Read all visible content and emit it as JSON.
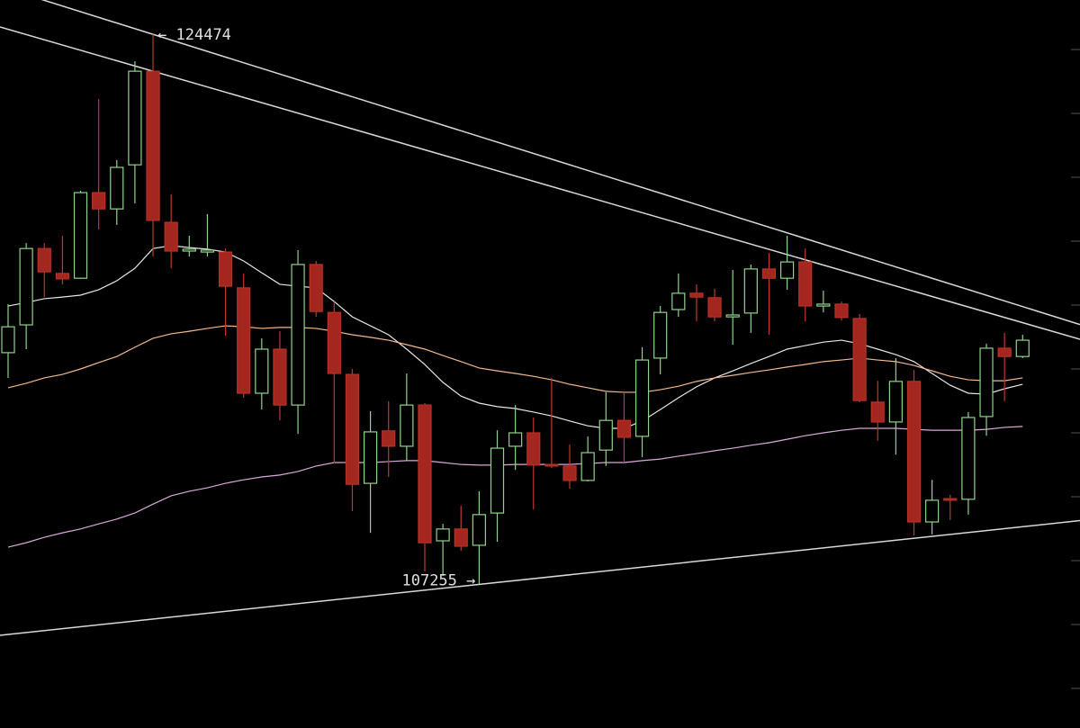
{
  "chart_data": {
    "type": "candlestick",
    "ylim": [
      102760,
      125550
    ],
    "yticks": [
      104000,
      106000,
      108000,
      110000,
      112000,
      114000,
      116000,
      118000,
      120000,
      122000,
      124000
    ],
    "up_color": "#8fd48a",
    "down_color": "#a3261f",
    "candles": {
      "open": [
        114510,
        115380,
        117770,
        116990,
        116840,
        119520,
        119010,
        120390,
        123320,
        118590,
        117690,
        117660,
        117660,
        116540,
        113240,
        114620,
        112870,
        117270,
        115770,
        113830,
        110420,
        112060,
        111580,
        112870,
        108620,
        108990,
        108480,
        109490,
        111580,
        112000,
        111010,
        110960,
        110510,
        111460,
        112390,
        111890,
        114340,
        115860,
        116370,
        116230,
        115630,
        115750,
        117130,
        116840,
        117350,
        115970,
        116030,
        115580,
        112960,
        112340,
        113610,
        109210,
        109940,
        109920,
        112510,
        114650,
        114390
      ],
      "high": [
        116030,
        117940,
        117940,
        118170,
        119580,
        122450,
        120540,
        123630,
        124474,
        119460,
        118170,
        118850,
        117770,
        116990,
        114960,
        115180,
        117720,
        117380,
        116110,
        114000,
        112680,
        112990,
        113860,
        112930,
        109150,
        109720,
        110170,
        112080,
        112870,
        112480,
        113720,
        111630,
        111890,
        113270,
        113240,
        114680,
        115970,
        116990,
        116650,
        116510,
        117100,
        117270,
        117630,
        118170,
        117770,
        116450,
        116110,
        115720,
        113630,
        114340,
        113970,
        110530,
        110060,
        112650,
        114790,
        115130,
        115070
      ],
      "low": [
        113720,
        114620,
        116250,
        116650,
        116820,
        118370,
        118510,
        119180,
        117520,
        117150,
        117520,
        117520,
        115040,
        113100,
        112730,
        112390,
        111970,
        115630,
        111040,
        109550,
        108870,
        110620,
        111130,
        107660,
        107520,
        108310,
        107255,
        108590,
        110840,
        109600,
        110900,
        110250,
        110480,
        110960,
        111100,
        111240,
        113830,
        115630,
        115490,
        115490,
        114760,
        115130,
        115070,
        116480,
        115490,
        115770,
        115520,
        112960,
        111750,
        111320,
        108790,
        108820,
        109270,
        109440,
        111910,
        112990,
        114340
      ],
      "close": [
        115320,
        117770,
        117040,
        116820,
        119520,
        119010,
        120310,
        123320,
        118650,
        117690,
        117750,
        117720,
        116590,
        113240,
        114620,
        112870,
        117270,
        115800,
        113860,
        110390,
        112030,
        111580,
        112870,
        108560,
        108990,
        108450,
        109440,
        111520,
        112000,
        110990,
        110960,
        110510,
        111380,
        112390,
        111860,
        114280,
        115770,
        116370,
        116250,
        115630,
        115690,
        117130,
        116840,
        117350,
        115970,
        116030,
        115610,
        113010,
        112340,
        113610,
        109210,
        109890,
        109890,
        112480,
        114650,
        114390,
        114900
      ]
    },
    "series": [
      {
        "color": "#e6e6e6",
        "values": [
          115970,
          116080,
          116200,
          116250,
          116310,
          116480,
          116760,
          117150,
          117770,
          117860,
          117800,
          117750,
          117660,
          117380,
          117010,
          116650,
          116590,
          116540,
          116110,
          115630,
          115350,
          115070,
          114620,
          114140,
          113580,
          113150,
          112930,
          112820,
          112760,
          112650,
          112530,
          112370,
          112220,
          112140,
          112140,
          112370,
          112730,
          113100,
          113440,
          113720,
          113940,
          114170,
          114390,
          114620,
          114730,
          114840,
          114900,
          114790,
          114620,
          114450,
          114230,
          113860,
          113490,
          113240,
          113210,
          113380,
          113520
        ]
      },
      {
        "color": "#f2b98c",
        "values": [
          113410,
          113550,
          113720,
          113830,
          114000,
          114200,
          114390,
          114680,
          114960,
          115100,
          115180,
          115270,
          115350,
          115320,
          115270,
          115300,
          115300,
          115270,
          115180,
          115070,
          114990,
          114900,
          114760,
          114620,
          114420,
          114230,
          114030,
          113940,
          113860,
          113770,
          113660,
          113520,
          113410,
          113300,
          113270,
          113270,
          113350,
          113460,
          113610,
          113720,
          113800,
          113890,
          113970,
          114060,
          114140,
          114230,
          114280,
          114340,
          114280,
          114230,
          114110,
          113940,
          113770,
          113660,
          113630,
          113630,
          113720
        ]
      },
      {
        "color": "#d9a9d9",
        "values": [
          108420,
          108560,
          108730,
          108870,
          108990,
          109150,
          109300,
          109490,
          109770,
          110030,
          110170,
          110280,
          110420,
          110530,
          110620,
          110680,
          110790,
          110960,
          111070,
          111070,
          111070,
          111100,
          111130,
          111130,
          111070,
          111010,
          110990,
          110990,
          111010,
          111010,
          111010,
          111010,
          111040,
          111070,
          111070,
          111130,
          111180,
          111270,
          111350,
          111440,
          111520,
          111610,
          111690,
          111800,
          111910,
          112000,
          112080,
          112140,
          112140,
          112140,
          112110,
          112080,
          112080,
          112080,
          112110,
          112170,
          112200
        ]
      }
    ],
    "trendlines": [
      {
        "color": "#d9d9d9",
        "x": [
          8,
          55
        ],
        "y": [
          124474,
          116130
        ]
      },
      {
        "color": "#d9d9d9",
        "x": [
          8,
          43
        ],
        "y": [
          123320,
          117580
        ]
      },
      {
        "color": "#d9d9d9",
        "x": [
          26,
          50
        ],
        "y": [
          107255,
          108700
        ]
      }
    ],
    "annotations": [
      "← 124474",
      "107255 →"
    ]
  }
}
